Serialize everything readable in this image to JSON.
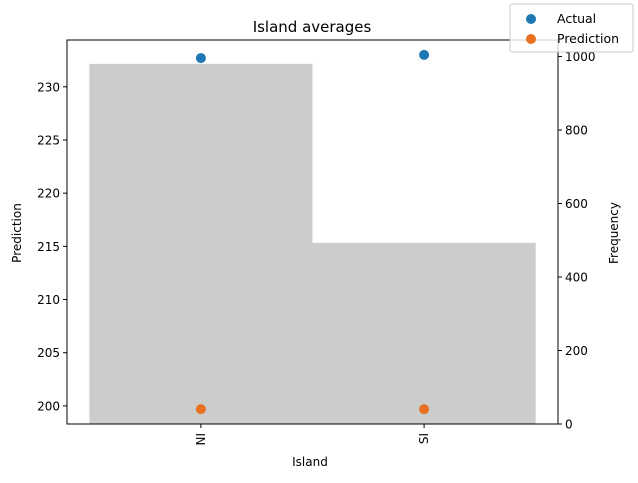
{
  "chart_data": {
    "type": "bar",
    "title": "Island averages",
    "xlabel": "Island",
    "ylabel": "Prediction",
    "y2label": "Frequency",
    "categories": [
      "NI",
      "SI"
    ],
    "ylim": [
      198.3,
      234.4
    ],
    "y2lim": [
      0,
      1045
    ],
    "yticks": [
      200,
      205,
      210,
      215,
      220,
      225,
      230
    ],
    "y2ticks": [
      0,
      200,
      400,
      600,
      800,
      1000
    ],
    "frequency": {
      "values": [
        980,
        493
      ],
      "color": "#cccccc"
    },
    "series": [
      {
        "name": "Actual",
        "values": [
          232.7,
          233.0
        ],
        "color": "#1f77b4"
      },
      {
        "name": "Prediction",
        "values": [
          199.7,
          199.7
        ],
        "color": "#e8711f"
      }
    ],
    "legend": "top-right"
  }
}
